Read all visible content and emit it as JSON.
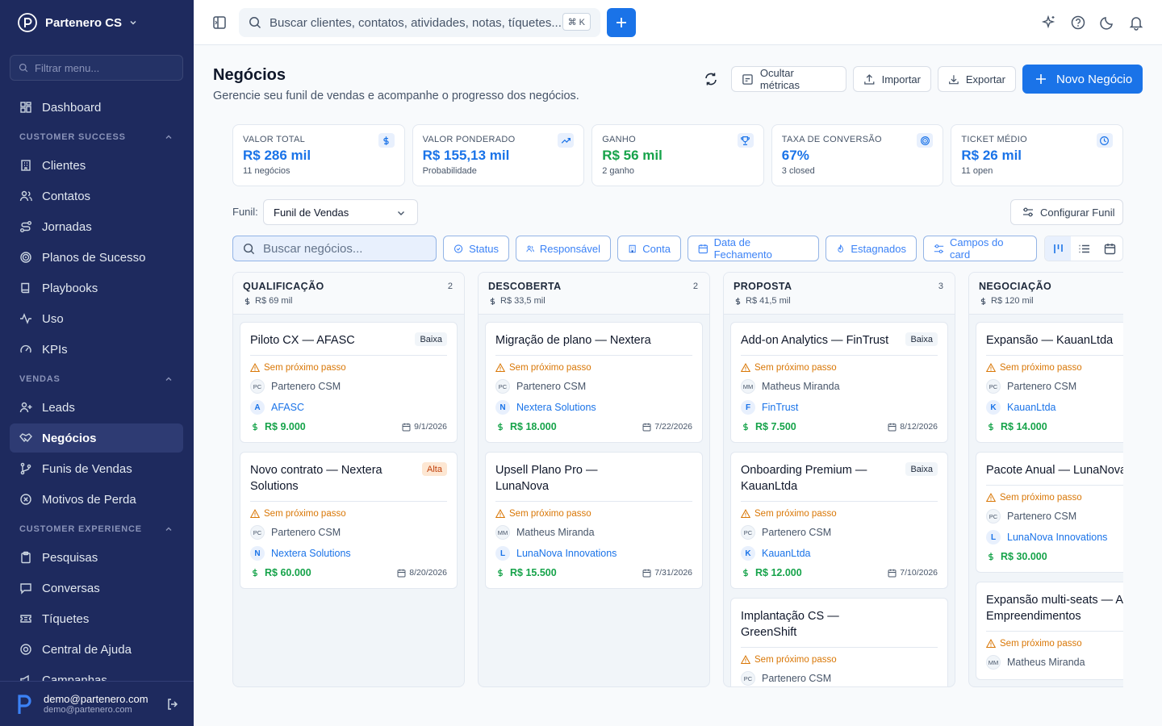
{
  "app": {
    "org": "Partenero CS"
  },
  "sidebar": {
    "filter_placeholder": "Filtrar menu...",
    "top": [
      {
        "label": "Dashboard"
      }
    ],
    "sections": [
      {
        "title": "CUSTOMER SUCCESS",
        "items": [
          "Clientes",
          "Contatos",
          "Jornadas",
          "Planos de Sucesso",
          "Playbooks",
          "Uso",
          "KPIs"
        ]
      },
      {
        "title": "VENDAS",
        "items": [
          "Leads",
          "Negócios",
          "Funis de Vendas",
          "Motivos de Perda"
        ]
      },
      {
        "title": "CUSTOMER EXPERIENCE",
        "items": [
          "Pesquisas",
          "Conversas",
          "Tíquetes",
          "Central de Ajuda",
          "Campanhas"
        ]
      }
    ],
    "active": "Negócios",
    "user": {
      "name": "demo@partenero.com",
      "email": "demo@partenero.com"
    }
  },
  "topbar": {
    "search_placeholder": "Buscar clientes, contatos, atividades, notas, tíquetes...",
    "shortcut": "⌘ K"
  },
  "page": {
    "title": "Negócios",
    "subtitle": "Gerencie seu funil de vendas e acompanhe o progresso dos negócios.",
    "buttons": {
      "hide_metrics": "Ocultar métricas",
      "import": "Importar",
      "export": "Exportar",
      "new": "Novo Negócio"
    }
  },
  "metrics": [
    {
      "label": "VALOR TOTAL",
      "value": "R$ 286 mil",
      "sub": "11 negócios",
      "color": "#1a73e8",
      "icon": "dollar-icon"
    },
    {
      "label": "VALOR PONDERADO",
      "value": "R$ 155,13 mil",
      "sub": "Probabilidade",
      "color": "#1a73e8",
      "icon": "trending-up-icon"
    },
    {
      "label": "GANHO",
      "value": "R$ 56 mil",
      "sub": "2 ganho",
      "color": "#16a34a",
      "icon": "trophy-icon"
    },
    {
      "label": "TAXA DE CONVERSÃO",
      "value": "67%",
      "sub": "3 closed",
      "color": "#1a73e8",
      "icon": "target-icon"
    },
    {
      "label": "TICKET MÉDIO",
      "value": "R$ 26 mil",
      "sub": "11 open",
      "color": "#1a73e8",
      "icon": "clock-icon"
    }
  ],
  "filters": {
    "funnel_label": "Funil:",
    "funnel_value": "Funil de Vendas",
    "configure": "Configurar Funil",
    "search_placeholder": "Buscar negócios...",
    "chips": [
      "Status",
      "Responsável",
      "Conta",
      "Data de Fechamento",
      "Estagnados",
      "Campos do card"
    ]
  },
  "columns": [
    {
      "title": "QUALIFICAÇÃO",
      "count": "2",
      "sum": "R$ 69 mil",
      "cards": [
        {
          "title": "Piloto CX — AFASC",
          "badge": "Baixa",
          "warn": "Sem próximo passo",
          "owner_initials": "PC",
          "owner": "Partenero CSM",
          "acc_initial": "A",
          "account": "AFASC",
          "amount": "R$ 9.000",
          "date": "9/1/2026"
        },
        {
          "title": "Novo contrato — Nextera Solutions",
          "badge": "Alta",
          "warn": "Sem próximo passo",
          "owner_initials": "PC",
          "owner": "Partenero CSM",
          "acc_initial": "N",
          "account": "Nextera Solutions",
          "amount": "R$ 60.000",
          "date": "8/20/2026"
        }
      ]
    },
    {
      "title": "DESCOBERTA",
      "count": "2",
      "sum": "R$ 33,5 mil",
      "cards": [
        {
          "title": "Migração de plano — Nextera",
          "badge": "",
          "warn": "Sem próximo passo",
          "owner_initials": "PC",
          "owner": "Partenero CSM",
          "acc_initial": "N",
          "account": "Nextera Solutions",
          "amount": "R$ 18.000",
          "date": "7/22/2026"
        },
        {
          "title": "Upsell Plano Pro — LunaNova",
          "badge": "",
          "warn": "Sem próximo passo",
          "owner_initials": "MM",
          "owner": "Matheus Miranda",
          "acc_initial": "L",
          "account": "LunaNova Innovations",
          "amount": "R$ 15.500",
          "date": "7/31/2026"
        }
      ]
    },
    {
      "title": "PROPOSTA",
      "count": "3",
      "sum": "R$ 41,5 mil",
      "cards": [
        {
          "title": "Add-on Analytics — FinTrust",
          "badge": "Baixa",
          "warn": "Sem próximo passo",
          "owner_initials": "MM",
          "owner": "Matheus Miranda",
          "acc_initial": "F",
          "account": "FinTrust",
          "amount": "R$ 7.500",
          "date": "8/12/2026"
        },
        {
          "title": "Onboarding Premium — KauanLtda",
          "badge": "Baixa",
          "warn": "Sem próximo passo",
          "owner_initials": "PC",
          "owner": "Partenero CSM",
          "acc_initial": "K",
          "account": "KauanLtda",
          "amount": "R$ 12.000",
          "date": "7/10/2026"
        },
        {
          "title": "Implantação CS — GreenShift",
          "badge": "",
          "warn": "Sem próximo passo",
          "owner_initials": "PC",
          "owner": "Partenero CSM",
          "acc_initial": "",
          "account": "",
          "amount": "",
          "date": ""
        }
      ]
    },
    {
      "title": "NEGOCIAÇÃO",
      "count": "",
      "sum": "R$ 120 mil",
      "cards": [
        {
          "title": "Expansão — KauanLtda",
          "badge": "",
          "warn": "Sem próximo passo",
          "owner_initials": "PC",
          "owner": "Partenero CSM",
          "acc_initial": "K",
          "account": "KauanLtda",
          "amount": "R$ 14.000",
          "date": ""
        },
        {
          "title": "Pacote Anual — LunaNova",
          "badge": "",
          "warn": "Sem próximo passo",
          "owner_initials": "PC",
          "owner": "Partenero CSM",
          "acc_initial": "L",
          "account": "LunaNova Innovations",
          "amount": "R$ 30.000",
          "date": ""
        },
        {
          "title": "Expansão multi-seats — A Empreendimentos",
          "badge": "",
          "warn": "Sem próximo passo",
          "owner_initials": "MM",
          "owner": "Matheus Miranda",
          "acc_initial": "",
          "account": "",
          "amount": "",
          "date": ""
        }
      ]
    }
  ]
}
